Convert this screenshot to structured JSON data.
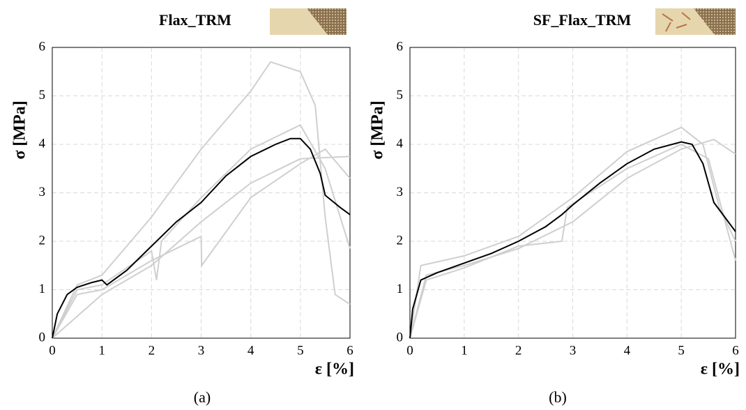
{
  "chart_data": [
    {
      "type": "line",
      "title": "Flax_TRM",
      "ylabel": "σ [MPa]",
      "xlabel": "ε [%]",
      "caption": "(a)",
      "xlim": [
        0,
        6
      ],
      "ylim": [
        0,
        6
      ],
      "xticks": [
        0,
        1,
        2,
        3,
        4,
        5,
        6
      ],
      "yticks": [
        0,
        1,
        2,
        3,
        4,
        5,
        6
      ],
      "grid": true,
      "series": [
        {
          "color": "#cfcfcf",
          "x": [
            0,
            0.5,
            1,
            1.5,
            2,
            3,
            4,
            4.4,
            5,
            5.3,
            5.5,
            5.7,
            6
          ],
          "values": [
            0,
            1.1,
            1.3,
            1.9,
            2.5,
            3.9,
            5.1,
            5.7,
            5.5,
            4.8,
            2.5,
            0.9,
            0.7
          ]
        },
        {
          "color": "#cfcfcf",
          "x": [
            0,
            0.5,
            1,
            2,
            2.1,
            2.2,
            3,
            4,
            5,
            5.5,
            6
          ],
          "values": [
            0,
            1.0,
            1.1,
            1.8,
            1.2,
            2.0,
            2.9,
            3.9,
            4.4,
            3.5,
            1.85
          ]
        },
        {
          "color": "#cfcfcf",
          "x": [
            0,
            0.5,
            1,
            2,
            3,
            3.01,
            4,
            5,
            5.5,
            6
          ],
          "values": [
            0,
            0.9,
            1.0,
            1.6,
            2.1,
            1.5,
            2.9,
            3.6,
            3.9,
            3.3
          ]
        },
        {
          "color": "#cfcfcf",
          "x": [
            0,
            1,
            2,
            3,
            4,
            5,
            6
          ],
          "values": [
            0,
            0.9,
            1.5,
            2.4,
            3.2,
            3.7,
            3.75
          ]
        },
        {
          "color": "#000000",
          "x": [
            0,
            0.1,
            0.3,
            0.5,
            0.8,
            1.0,
            1.1,
            1.5,
            2.0,
            2.5,
            3.0,
            3.5,
            4.0,
            4.5,
            4.8,
            5.0,
            5.2,
            5.4,
            5.5,
            5.8,
            6.0
          ],
          "values": [
            0,
            0.5,
            0.9,
            1.05,
            1.15,
            1.2,
            1.1,
            1.4,
            1.9,
            2.4,
            2.8,
            3.35,
            3.75,
            4.0,
            4.12,
            4.12,
            3.9,
            3.4,
            2.95,
            2.7,
            2.55
          ]
        }
      ]
    },
    {
      "type": "line",
      "title": "SF_Flax_TRM",
      "ylabel": "σ [MPa]",
      "xlabel": "ε [%]",
      "caption": "(b)",
      "xlim": [
        0,
        6
      ],
      "ylim": [
        0,
        6
      ],
      "xticks": [
        0,
        1,
        2,
        3,
        4,
        5,
        6
      ],
      "yticks": [
        0,
        1,
        2,
        3,
        4,
        5,
        6
      ],
      "grid": true,
      "series": [
        {
          "color": "#cfcfcf",
          "x": [
            0,
            0.2,
            1,
            2,
            3,
            4,
            5,
            5.4,
            5.7,
            6
          ],
          "values": [
            0,
            1.5,
            1.7,
            2.1,
            2.9,
            3.85,
            4.35,
            4.0,
            2.7,
            2.0
          ]
        },
        {
          "color": "#cfcfcf",
          "x": [
            0,
            0.3,
            1,
            2,
            2.8,
            2.9,
            4,
            5,
            5.5,
            6
          ],
          "values": [
            0,
            1.2,
            1.45,
            1.9,
            2.0,
            2.7,
            3.5,
            4.0,
            3.7,
            1.6
          ]
        },
        {
          "color": "#cfcfcf",
          "x": [
            0,
            0.3,
            1,
            2,
            3,
            4,
            5,
            5.6,
            6
          ],
          "values": [
            0,
            1.3,
            1.5,
            1.85,
            2.4,
            3.3,
            3.9,
            4.1,
            3.8
          ]
        },
        {
          "color": "#000000",
          "x": [
            0,
            0.05,
            0.2,
            0.5,
            1,
            1.5,
            2,
            2.5,
            2.8,
            3,
            3.5,
            4,
            4.5,
            5,
            5.2,
            5.4,
            5.6,
            6
          ],
          "values": [
            0,
            0.6,
            1.2,
            1.35,
            1.55,
            1.75,
            2.0,
            2.3,
            2.55,
            2.75,
            3.2,
            3.6,
            3.9,
            4.05,
            4.0,
            3.6,
            2.8,
            2.2
          ]
        }
      ]
    }
  ]
}
